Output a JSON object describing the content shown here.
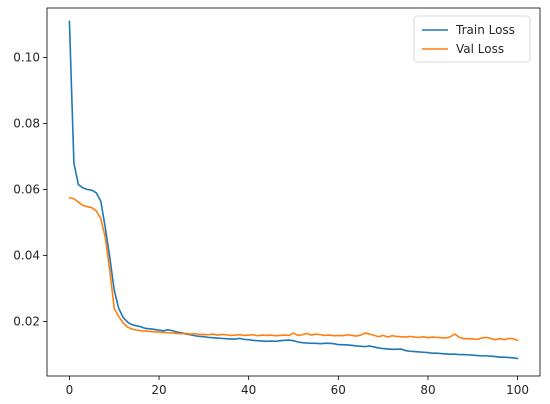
{
  "chart_data": {
    "type": "line",
    "title": "",
    "xlabel": "",
    "ylabel": "",
    "xlim": [
      -5,
      105
    ],
    "ylim": [
      0.0035,
      0.115
    ],
    "xticks": [
      0,
      20,
      40,
      60,
      80,
      100
    ],
    "yticks": [
      0.02,
      0.04,
      0.06,
      0.08,
      0.1
    ],
    "ytick_labels": [
      "0.02",
      "0.04",
      "0.06",
      "0.08",
      "0.10"
    ],
    "legend_position": "top-right",
    "grid": false,
    "series": [
      {
        "name": "Train Loss",
        "color": "#1f77b4",
        "x": [
          0,
          1,
          2,
          3,
          4,
          5,
          6,
          7,
          8,
          9,
          10,
          11,
          12,
          13,
          14,
          15,
          16,
          17,
          18,
          19,
          20,
          21,
          22,
          23,
          24,
          25,
          26,
          27,
          28,
          29,
          30,
          31,
          32,
          33,
          34,
          35,
          36,
          37,
          38,
          39,
          40,
          41,
          42,
          43,
          44,
          45,
          46,
          47,
          48,
          49,
          50,
          51,
          52,
          53,
          54,
          55,
          56,
          57,
          58,
          59,
          60,
          61,
          62,
          63,
          64,
          65,
          66,
          67,
          68,
          69,
          70,
          71,
          72,
          73,
          74,
          75,
          76,
          77,
          78,
          79,
          80,
          81,
          82,
          83,
          84,
          85,
          86,
          87,
          88,
          89,
          90,
          91,
          92,
          93,
          94,
          95,
          96,
          97,
          98,
          99,
          100
        ],
        "values": [
          0.111,
          0.068,
          0.0615,
          0.0605,
          0.06,
          0.0598,
          0.059,
          0.0565,
          0.0485,
          0.0395,
          0.0295,
          0.024,
          0.0212,
          0.0198,
          0.019,
          0.0187,
          0.0184,
          0.0179,
          0.0178,
          0.0176,
          0.0174,
          0.0172,
          0.0175,
          0.0172,
          0.0168,
          0.0166,
          0.0162,
          0.016,
          0.0157,
          0.0155,
          0.0154,
          0.0152,
          0.0151,
          0.015,
          0.0149,
          0.0148,
          0.0147,
          0.0147,
          0.0149,
          0.0146,
          0.0145,
          0.0143,
          0.0142,
          0.0141,
          0.014,
          0.0141,
          0.014,
          0.0142,
          0.0143,
          0.0144,
          0.0142,
          0.0138,
          0.0136,
          0.0135,
          0.0134,
          0.0134,
          0.0133,
          0.0134,
          0.0134,
          0.0133,
          0.013,
          0.013,
          0.0129,
          0.0128,
          0.0126,
          0.0125,
          0.0124,
          0.0126,
          0.0123,
          0.012,
          0.0118,
          0.0117,
          0.0116,
          0.0116,
          0.0117,
          0.0112,
          0.011,
          0.0109,
          0.0108,
          0.0107,
          0.0106,
          0.0104,
          0.0104,
          0.0103,
          0.0102,
          0.0101,
          0.0101,
          0.01,
          0.01,
          0.0099,
          0.0098,
          0.0097,
          0.0096,
          0.0096,
          0.0095,
          0.0094,
          0.0092,
          0.0092,
          0.0091,
          0.009,
          0.0088
        ]
      },
      {
        "name": "Val Loss",
        "color": "#ff7f0e",
        "x": [
          0,
          1,
          2,
          3,
          4,
          5,
          6,
          7,
          8,
          9,
          10,
          11,
          12,
          13,
          14,
          15,
          16,
          17,
          18,
          19,
          20,
          21,
          22,
          23,
          24,
          25,
          26,
          27,
          28,
          29,
          30,
          31,
          32,
          33,
          34,
          35,
          36,
          37,
          38,
          39,
          40,
          41,
          42,
          43,
          44,
          45,
          46,
          47,
          48,
          49,
          50,
          51,
          52,
          53,
          54,
          55,
          56,
          57,
          58,
          59,
          60,
          61,
          62,
          63,
          64,
          65,
          66,
          67,
          68,
          69,
          70,
          71,
          72,
          73,
          74,
          75,
          76,
          77,
          78,
          79,
          80,
          81,
          82,
          83,
          84,
          85,
          86,
          87,
          88,
          89,
          90,
          91,
          92,
          93,
          94,
          95,
          96,
          97,
          98,
          99,
          100
        ],
        "values": [
          0.0575,
          0.0572,
          0.0562,
          0.0552,
          0.0548,
          0.0545,
          0.0535,
          0.0512,
          0.0455,
          0.0355,
          0.024,
          0.0215,
          0.0196,
          0.0183,
          0.0177,
          0.0174,
          0.0172,
          0.0171,
          0.017,
          0.0169,
          0.0168,
          0.0167,
          0.0166,
          0.0165,
          0.0164,
          0.0163,
          0.0164,
          0.0162,
          0.0163,
          0.0161,
          0.0161,
          0.016,
          0.0162,
          0.0159,
          0.0161,
          0.016,
          0.0158,
          0.0159,
          0.016,
          0.0158,
          0.0159,
          0.016,
          0.0157,
          0.0159,
          0.0158,
          0.0159,
          0.0157,
          0.0158,
          0.0159,
          0.0158,
          0.0165,
          0.0158,
          0.016,
          0.0164,
          0.0159,
          0.0162,
          0.016,
          0.0158,
          0.0159,
          0.0157,
          0.0158,
          0.0157,
          0.016,
          0.0158,
          0.0156,
          0.0159,
          0.0165,
          0.0162,
          0.0158,
          0.0154,
          0.0158,
          0.0153,
          0.0157,
          0.0155,
          0.0154,
          0.0153,
          0.0155,
          0.0153,
          0.0152,
          0.0154,
          0.0151,
          0.0153,
          0.0152,
          0.0151,
          0.015,
          0.0154,
          0.0162,
          0.0152,
          0.0148,
          0.0148,
          0.0147,
          0.0146,
          0.015,
          0.0152,
          0.0149,
          0.0145,
          0.0148,
          0.0145,
          0.0149,
          0.0148,
          0.0143
        ]
      }
    ]
  }
}
